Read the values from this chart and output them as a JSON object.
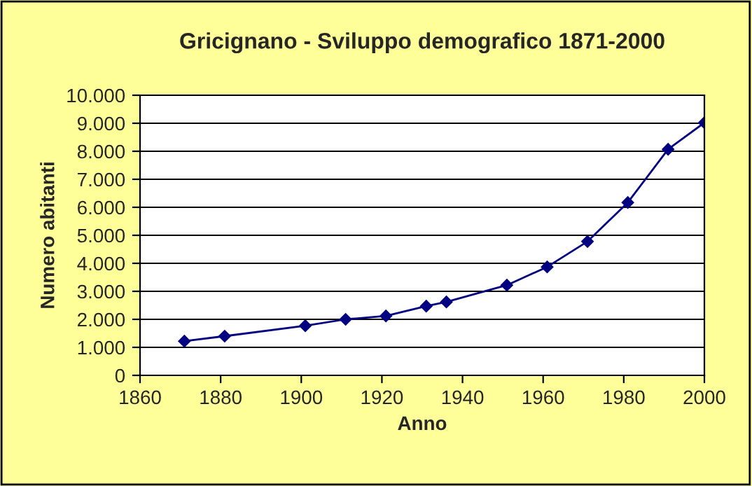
{
  "chart_data": {
    "type": "line",
    "title": "Gricignano - Sviluppo demografico 1871-2000",
    "xlabel": "Anno",
    "ylabel": "Numero abitanti",
    "x": [
      1871,
      1881,
      1901,
      1911,
      1921,
      1931,
      1936,
      1951,
      1961,
      1971,
      1981,
      1991,
      2000
    ],
    "series": [
      {
        "color": "#000080",
        "values": [
          1220,
          1400,
          1770,
          2000,
          2120,
          2470,
          2620,
          3220,
          3870,
          4780,
          6170,
          8070,
          9020
        ]
      }
    ],
    "xlim": [
      1860,
      2000
    ],
    "xticks": [
      1860,
      1880,
      1900,
      1920,
      1940,
      1960,
      1980,
      2000
    ],
    "ylim": [
      0,
      10000
    ],
    "yticks": [
      0,
      {
        "value": 1000,
        "label": "1.000"
      },
      {
        "value": 2000,
        "label": "2.000"
      },
      {
        "value": 3000,
        "label": "3.000"
      },
      {
        "value": 4000,
        "label": "4.000"
      },
      {
        "value": 5000,
        "label": "5.000"
      },
      {
        "value": 6000,
        "label": "6.000"
      },
      {
        "value": 7000,
        "label": "7.000"
      },
      {
        "value": 8000,
        "label": "8.000"
      },
      {
        "value": 9000,
        "label": "9.000"
      },
      {
        "value": 10000,
        "label": "10.000"
      }
    ],
    "grid": "y",
    "marker": "diamond",
    "line_style": "solid"
  }
}
